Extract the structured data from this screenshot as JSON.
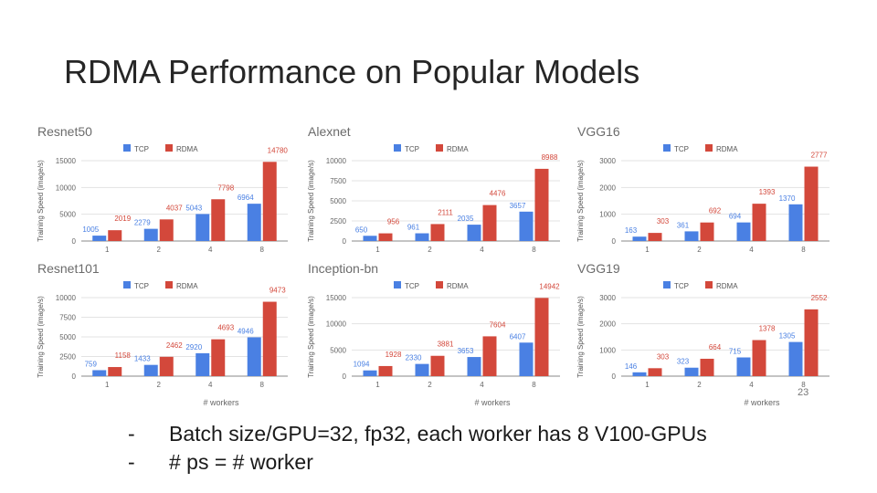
{
  "slide": {
    "title": "RDMA Performance on Popular Models",
    "page_number": "23",
    "bullets": [
      {
        "dash": "-",
        "text": "Batch size/GPU=32, fp32, each worker has 8 V100-GPUs"
      },
      {
        "dash": "-",
        "text": "# ps = # worker"
      }
    ]
  },
  "colors": {
    "tcp": "#4a80e3",
    "rdma": "#d3483b"
  },
  "chart_data": [
    {
      "type": "bar",
      "title": "Resnet50",
      "categories": [
        "1",
        "2",
        "4",
        "8"
      ],
      "ylabel": "Training Speed (image/s)",
      "xlabel": "",
      "ylim": [
        0,
        15000
      ],
      "yticks": [
        "0",
        "5000",
        "10000",
        "15000"
      ],
      "ytick_values": [
        0,
        5000,
        10000,
        15000
      ],
      "legend": [
        "TCP",
        "RDMA"
      ],
      "series": [
        {
          "name": "TCP",
          "values": [
            1005,
            2279,
            5043,
            6964
          ],
          "labels": [
            "1005",
            "2279",
            "5043",
            "6964"
          ]
        },
        {
          "name": "RDMA",
          "values": [
            2019,
            4037,
            7798,
            14780
          ],
          "labels": [
            "2019",
            "4037",
            "7798",
            "14780"
          ]
        }
      ]
    },
    {
      "type": "bar",
      "title": "Alexnet",
      "categories": [
        "1",
        "2",
        "4",
        "8"
      ],
      "ylabel": "Training Speed (image/s)",
      "xlabel": "",
      "ylim": [
        0,
        10000
      ],
      "yticks": [
        "0",
        "2500",
        "5000",
        "7500",
        "10000"
      ],
      "ytick_values": [
        0,
        2500,
        5000,
        7500,
        10000
      ],
      "legend": [
        "TCP",
        "RDMA"
      ],
      "series": [
        {
          "name": "TCP",
          "values": [
            650,
            961,
            2035,
            3657
          ],
          "labels": [
            "650",
            "961",
            "2035",
            "3657"
          ]
        },
        {
          "name": "RDMA",
          "values": [
            956,
            2111,
            4476,
            8988
          ],
          "labels": [
            "956",
            "2111",
            "4476",
            "8988"
          ]
        }
      ]
    },
    {
      "type": "bar",
      "title": "VGG16",
      "categories": [
        "1",
        "2",
        "4",
        "8"
      ],
      "ylabel": "Training Speed (image/s)",
      "xlabel": "",
      "ylim": [
        0,
        3000
      ],
      "yticks": [
        "0",
        "1000",
        "2000",
        "3000"
      ],
      "ytick_values": [
        0,
        1000,
        2000,
        3000
      ],
      "legend": [
        "TCP",
        "RDMA"
      ],
      "series": [
        {
          "name": "TCP",
          "values": [
            163,
            361,
            694,
            1370
          ],
          "labels": [
            "163",
            "361",
            "694",
            "1370"
          ]
        },
        {
          "name": "RDMA",
          "values": [
            303,
            692,
            1393,
            2777
          ],
          "labels": [
            "303",
            "692",
            "1393",
            "2777"
          ]
        }
      ]
    },
    {
      "type": "bar",
      "title": "Resnet101",
      "categories": [
        "1",
        "2",
        "4",
        "8"
      ],
      "ylabel": "Training Speed (image/s)",
      "xlabel": "# workers",
      "ylim": [
        0,
        10000
      ],
      "yticks": [
        "0",
        "2500",
        "5000",
        "7500",
        "10000"
      ],
      "ytick_values": [
        0,
        2500,
        5000,
        7500,
        10000
      ],
      "legend": [
        "TCP",
        "RDMA"
      ],
      "series": [
        {
          "name": "TCP",
          "values": [
            759,
            1433,
            2920,
            4946
          ],
          "labels": [
            "759",
            "1433",
            "2920",
            "4946"
          ]
        },
        {
          "name": "RDMA",
          "values": [
            1158,
            2462,
            4693,
            9473
          ],
          "labels": [
            "1158",
            "2462",
            "4693",
            "9473"
          ]
        }
      ]
    },
    {
      "type": "bar",
      "title": "Inception-bn",
      "categories": [
        "1",
        "2",
        "4",
        "8"
      ],
      "ylabel": "Training Speed (image/s)",
      "xlabel": "# workers",
      "ylim": [
        0,
        15000
      ],
      "yticks": [
        "0",
        "5000",
        "10000",
        "15000"
      ],
      "ytick_values": [
        0,
        5000,
        10000,
        15000
      ],
      "legend": [
        "TCP",
        "RDMA"
      ],
      "series": [
        {
          "name": "TCP",
          "values": [
            1094,
            2330,
            3653,
            6407
          ],
          "labels": [
            "1094",
            "2330",
            "3653",
            "6407"
          ]
        },
        {
          "name": "RDMA",
          "values": [
            1928,
            3881,
            7604,
            14942
          ],
          "labels": [
            "1928",
            "3881",
            "7604",
            "14942"
          ]
        }
      ]
    },
    {
      "type": "bar",
      "title": "VGG19",
      "categories": [
        "1",
        "2",
        "4",
        "8"
      ],
      "ylabel": "Training Speed (image/s)",
      "xlabel": "# workers",
      "ylim": [
        0,
        3000
      ],
      "yticks": [
        "0",
        "1000",
        "2000",
        "3000"
      ],
      "ytick_values": [
        0,
        1000,
        2000,
        3000
      ],
      "legend": [
        "TCP",
        "RDMA"
      ],
      "series": [
        {
          "name": "TCP",
          "values": [
            146,
            323,
            715,
            1305
          ],
          "labels": [
            "146",
            "323",
            "715",
            "1305"
          ]
        },
        {
          "name": "RDMA",
          "values": [
            303,
            664,
            1378,
            2552
          ],
          "labels": [
            "303",
            "664",
            "1378",
            "2552"
          ]
        }
      ]
    }
  ]
}
